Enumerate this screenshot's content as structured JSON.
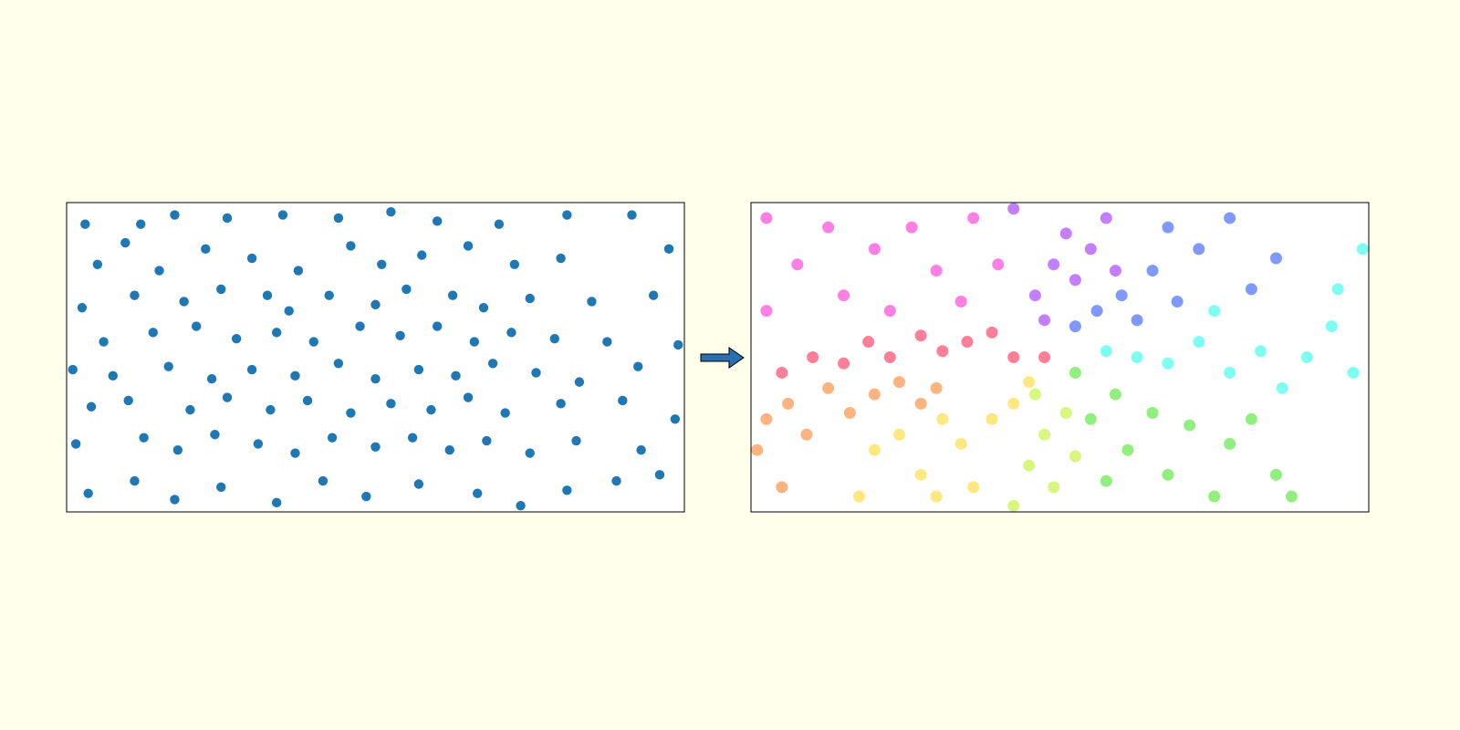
{
  "chart_data": [
    {
      "type": "scatter",
      "color": "#1f77b4",
      "xlim": [
        0,
        2
      ],
      "ylim": [
        0,
        1
      ],
      "x": [
        0.06,
        0.24,
        0.19,
        0.35,
        0.52,
        0.7,
        0.88,
        1.05,
        1.2,
        1.4,
        1.62,
        1.83,
        0.1,
        0.3,
        0.45,
        0.6,
        0.75,
        0.92,
        1.02,
        1.15,
        1.3,
        1.45,
        1.6,
        1.95,
        0.05,
        0.22,
        0.38,
        0.5,
        0.65,
        0.72,
        0.85,
        1.0,
        1.1,
        1.25,
        1.35,
        1.5,
        1.7,
        1.9,
        0.12,
        0.28,
        0.42,
        0.55,
        0.68,
        0.8,
        0.95,
        1.08,
        1.2,
        1.32,
        1.44,
        1.58,
        1.75,
        1.98,
        0.02,
        0.15,
        0.33,
        0.47,
        0.6,
        0.74,
        0.88,
        1.0,
        1.14,
        1.26,
        1.38,
        1.52,
        1.66,
        1.85,
        0.08,
        0.2,
        0.4,
        0.52,
        0.66,
        0.78,
        0.92,
        1.05,
        1.18,
        1.3,
        1.42,
        1.6,
        1.8,
        1.97,
        0.03,
        0.25,
        0.36,
        0.48,
        0.62,
        0.74,
        0.86,
        1.0,
        1.12,
        1.24,
        1.36,
        1.5,
        1.65,
        1.86,
        0.07,
        0.22,
        0.35,
        0.5,
        0.68,
        0.83,
        0.97,
        1.14,
        1.33,
        1.47,
        1.62,
        1.78,
        1.92
      ],
      "y": [
        0.93,
        0.93,
        0.87,
        0.96,
        0.95,
        0.96,
        0.95,
        0.97,
        0.94,
        0.93,
        0.96,
        0.96,
        0.8,
        0.78,
        0.85,
        0.82,
        0.78,
        0.86,
        0.8,
        0.83,
        0.86,
        0.8,
        0.82,
        0.85,
        0.66,
        0.7,
        0.68,
        0.72,
        0.7,
        0.65,
        0.7,
        0.67,
        0.72,
        0.7,
        0.66,
        0.69,
        0.68,
        0.7,
        0.55,
        0.58,
        0.6,
        0.56,
        0.58,
        0.55,
        0.6,
        0.57,
        0.6,
        0.55,
        0.58,
        0.56,
        0.55,
        0.54,
        0.46,
        0.44,
        0.47,
        0.43,
        0.46,
        0.44,
        0.48,
        0.43,
        0.46,
        0.44,
        0.48,
        0.45,
        0.42,
        0.47,
        0.34,
        0.36,
        0.33,
        0.37,
        0.33,
        0.36,
        0.32,
        0.35,
        0.33,
        0.37,
        0.32,
        0.35,
        0.36,
        0.3,
        0.22,
        0.24,
        0.2,
        0.25,
        0.22,
        0.19,
        0.24,
        0.21,
        0.24,
        0.2,
        0.23,
        0.19,
        0.23,
        0.2,
        0.06,
        0.1,
        0.04,
        0.08,
        0.03,
        0.1,
        0.05,
        0.09,
        0.06,
        0.02,
        0.07,
        0.1,
        0.12
      ]
    },
    {
      "type": "scatter",
      "alpha": 0.5,
      "xlim": [
        0,
        2
      ],
      "ylim": [
        0,
        1
      ],
      "series": [
        {
          "color": "#ff0033",
          "x": [
            0.1,
            0.2,
            0.3,
            0.38,
            0.45,
            0.55,
            0.62,
            0.7,
            0.78,
            0.85,
            0.95
          ],
          "y": [
            0.45,
            0.5,
            0.48,
            0.55,
            0.5,
            0.57,
            0.52,
            0.55,
            0.58,
            0.5,
            0.5
          ]
        },
        {
          "color": "#ff6a00",
          "x": [
            0.02,
            0.05,
            0.12,
            0.18,
            0.25,
            0.32,
            0.4,
            0.48,
            0.55,
            0.1,
            0.6
          ],
          "y": [
            0.2,
            0.3,
            0.35,
            0.25,
            0.4,
            0.32,
            0.38,
            0.42,
            0.35,
            0.08,
            0.4
          ]
        },
        {
          "color": "#ffd200",
          "x": [
            0.35,
            0.4,
            0.48,
            0.55,
            0.62,
            0.68,
            0.72,
            0.78,
            0.85,
            0.9,
            0.6
          ],
          "y": [
            0.05,
            0.2,
            0.25,
            0.12,
            0.3,
            0.22,
            0.08,
            0.3,
            0.35,
            0.42,
            0.05
          ]
        },
        {
          "color": "#b4f000",
          "x": [
            0.85,
            0.9,
            0.95,
            0.98,
            1.02,
            1.05,
            0.92
          ],
          "y": [
            0.02,
            0.15,
            0.25,
            0.08,
            0.32,
            0.18,
            0.38
          ]
        },
        {
          "color": "#22e000",
          "x": [
            1.05,
            1.1,
            1.18,
            1.22,
            1.3,
            1.35,
            1.42,
            1.5,
            1.55,
            1.62,
            1.7,
            1.75,
            1.15
          ],
          "y": [
            0.45,
            0.3,
            0.38,
            0.2,
            0.32,
            0.12,
            0.28,
            0.05,
            0.22,
            0.3,
            0.12,
            0.05,
            0.1
          ]
        },
        {
          "color": "#00ffe6",
          "x": [
            1.15,
            1.25,
            1.35,
            1.45,
            1.55,
            1.65,
            1.72,
            1.8,
            1.88,
            1.95,
            1.9,
            1.98,
            1.5
          ],
          "y": [
            0.52,
            0.5,
            0.48,
            0.55,
            0.45,
            0.52,
            0.4,
            0.5,
            0.6,
            0.45,
            0.72,
            0.85,
            0.65
          ]
        },
        {
          "color": "#0033ff",
          "x": [
            1.05,
            1.12,
            1.2,
            1.25,
            1.3,
            1.38,
            1.45,
            1.55,
            1.62,
            1.7,
            1.35
          ],
          "y": [
            0.6,
            0.65,
            0.7,
            0.62,
            0.78,
            0.68,
            0.85,
            0.95,
            0.72,
            0.82,
            0.92
          ]
        },
        {
          "color": "#8a00ff",
          "x": [
            0.92,
            0.98,
            1.02,
            1.05,
            1.1,
            1.15,
            0.85,
            1.18,
            0.95
          ],
          "y": [
            0.7,
            0.8,
            0.9,
            0.75,
            0.85,
            0.95,
            0.98,
            0.78,
            0.62
          ]
        },
        {
          "color": "#ff00cc",
          "x": [
            0.05,
            0.15,
            0.25,
            0.3,
            0.4,
            0.45,
            0.52,
            0.6,
            0.68,
            0.72,
            0.8,
            0.05
          ],
          "y": [
            0.95,
            0.8,
            0.92,
            0.7,
            0.85,
            0.65,
            0.92,
            0.78,
            0.68,
            0.95,
            0.8,
            0.65
          ]
        }
      ]
    }
  ]
}
